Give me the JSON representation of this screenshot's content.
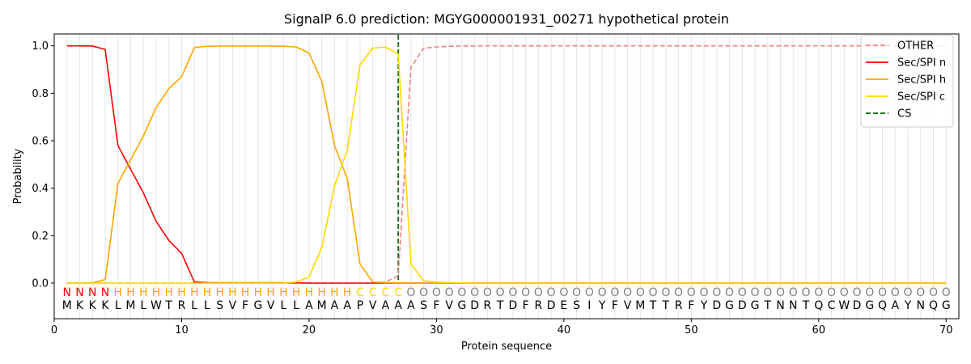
{
  "chart_data": {
    "type": "line",
    "title": "SignalP 6.0 prediction: MGYG000001931_00271 hypothetical protein",
    "xlabel": "Protein sequence",
    "ylabel": "Probability",
    "xlim": [
      0,
      71
    ],
    "ylim": [
      -0.15,
      1.05
    ],
    "x_ticks": [
      0,
      10,
      20,
      30,
      40,
      50,
      60,
      70
    ],
    "y_ticks": [
      0.0,
      0.2,
      0.4,
      0.6,
      0.8,
      1.0
    ],
    "y_tick_labels": [
      "0.0",
      "0.2",
      "0.4",
      "0.6",
      "0.8",
      "1.0"
    ],
    "grid": "vertical lines at each residue",
    "legend_position": "top-right",
    "sequence": [
      "M",
      "K",
      "K",
      "K",
      "L",
      "M",
      "L",
      "W",
      "T",
      "R",
      "L",
      "L",
      "S",
      "V",
      "F",
      "G",
      "V",
      "L",
      "L",
      "A",
      "M",
      "A",
      "A",
      "P",
      "V",
      "A",
      "A",
      "A",
      "S",
      "F",
      "V",
      "G",
      "D",
      "R",
      "T",
      "D",
      "F",
      "R",
      "D",
      "E",
      "S",
      "I",
      "Y",
      "F",
      "V",
      "M",
      "T",
      "T",
      "R",
      "F",
      "Y",
      "D",
      "G",
      "D",
      "G",
      "T",
      "N",
      "N",
      "T",
      "Q",
      "C",
      "W",
      "D",
      "G",
      "Q",
      "A",
      "Y",
      "N",
      "Q",
      "G"
    ],
    "annotation": [
      "N",
      "N",
      "N",
      "N",
      "H",
      "H",
      "H",
      "H",
      "H",
      "H",
      "H",
      "H",
      "H",
      "H",
      "H",
      "H",
      "H",
      "H",
      "H",
      "H",
      "H",
      "H",
      "H",
      "C",
      "C",
      "C",
      "C",
      "O",
      "O",
      "O",
      "O",
      "O",
      "O",
      "O",
      "O",
      "O",
      "O",
      "O",
      "O",
      "O",
      "O",
      "O",
      "O",
      "O",
      "O",
      "O",
      "O",
      "O",
      "O",
      "O",
      "O",
      "O",
      "O",
      "O",
      "O",
      "O",
      "O",
      "O",
      "O",
      "O",
      "O",
      "O",
      "O",
      "O",
      "O",
      "O",
      "O",
      "O",
      "O",
      "O"
    ],
    "annotation_colors": {
      "N": "#ff0000",
      "H": "#ffa500",
      "C": "#ffd700",
      "O": "#808080"
    },
    "cleavage_site": 27,
    "series": [
      {
        "name": "OTHER",
        "color": "#f08080",
        "style": "dashed",
        "values": [
          0.0,
          0.0,
          0.0,
          0.0,
          0.0,
          0.0,
          0.0,
          0.0,
          0.0,
          0.0,
          0.0,
          0.0,
          0.0,
          0.0,
          0.0,
          0.0,
          0.0,
          0.0,
          0.0,
          0.0,
          0.0,
          0.0,
          0.0,
          0.0,
          0.0,
          0.005,
          0.03,
          0.91,
          0.99,
          0.995,
          0.998,
          0.999,
          0.999,
          1.0,
          1.0,
          1.0,
          1.0,
          1.0,
          1.0,
          1.0,
          1.0,
          1.0,
          1.0,
          1.0,
          1.0,
          1.0,
          1.0,
          1.0,
          1.0,
          1.0,
          1.0,
          1.0,
          1.0,
          1.0,
          1.0,
          1.0,
          1.0,
          1.0,
          1.0,
          1.0,
          1.0,
          1.0,
          1.0,
          1.0,
          1.0,
          1.0,
          1.0,
          1.0,
          1.0,
          1.0
        ]
      },
      {
        "name": "Sec/SPI n",
        "color": "#ff0000",
        "style": "solid",
        "values": [
          1.0,
          1.0,
          0.999,
          0.985,
          0.58,
          0.48,
          0.38,
          0.26,
          0.18,
          0.125,
          0.005,
          0.002,
          0.001,
          0.001,
          0.001,
          0.001,
          0.001,
          0.001,
          0.001,
          0.0,
          0.0,
          0.0,
          0.0,
          0.0,
          0.0,
          0.0,
          0.0,
          0.0,
          0.0,
          0.0,
          0.0,
          0.0,
          0.0,
          0.0,
          0.0,
          0.0,
          0.0,
          0.0,
          0.0,
          0.0,
          0.0,
          0.0,
          0.0,
          0.0,
          0.0,
          0.0,
          0.0,
          0.0,
          0.0,
          0.0,
          0.0,
          0.0,
          0.0,
          0.0,
          0.0,
          0.0,
          0.0,
          0.0,
          0.0,
          0.0,
          0.0,
          0.0,
          0.0,
          0.0,
          0.0,
          0.0,
          0.0,
          0.0,
          0.0,
          0.0
        ]
      },
      {
        "name": "Sec/SPI h",
        "color": "#ffa500",
        "style": "solid",
        "values": [
          0.0,
          0.0,
          0.001,
          0.015,
          0.42,
          0.52,
          0.62,
          0.74,
          0.82,
          0.87,
          0.993,
          0.998,
          0.999,
          0.999,
          0.999,
          0.999,
          0.999,
          0.998,
          0.995,
          0.97,
          0.85,
          0.58,
          0.44,
          0.08,
          0.005,
          0.002,
          0.001,
          0.0,
          0.0,
          0.0,
          0.0,
          0.0,
          0.0,
          0.0,
          0.0,
          0.0,
          0.0,
          0.0,
          0.0,
          0.0,
          0.0,
          0.0,
          0.0,
          0.0,
          0.0,
          0.0,
          0.0,
          0.0,
          0.0,
          0.0,
          0.0,
          0.0,
          0.0,
          0.0,
          0.0,
          0.0,
          0.0,
          0.0,
          0.0,
          0.0,
          0.0,
          0.0,
          0.0,
          0.0,
          0.0,
          0.0,
          0.0,
          0.0,
          0.0,
          0.0
        ]
      },
      {
        "name": "Sec/SPI c",
        "color": "#ffd700",
        "style": "solid",
        "values": [
          0.0,
          0.0,
          0.0,
          0.0,
          0.0,
          0.0,
          0.0,
          0.0,
          0.0,
          0.0,
          0.0,
          0.0,
          0.0,
          0.0,
          0.0,
          0.0,
          0.0,
          0.0,
          0.005,
          0.025,
          0.15,
          0.41,
          0.56,
          0.92,
          0.99,
          0.995,
          0.965,
          0.08,
          0.01,
          0.004,
          0.002,
          0.001,
          0.0,
          0.0,
          0.0,
          0.0,
          0.0,
          0.0,
          0.0,
          0.0,
          0.0,
          0.0,
          0.0,
          0.0,
          0.0,
          0.0,
          0.0,
          0.0,
          0.0,
          0.0,
          0.0,
          0.0,
          0.0,
          0.0,
          0.0,
          0.0,
          0.0,
          0.0,
          0.0,
          0.0,
          0.0,
          0.0,
          0.0,
          0.0,
          0.0,
          0.0,
          0.0,
          0.0,
          0.0,
          0.0
        ]
      }
    ],
    "legend": [
      {
        "label": "OTHER",
        "color": "#f08080",
        "style": "dashed"
      },
      {
        "label": "Sec/SPI n",
        "color": "#ff0000",
        "style": "solid"
      },
      {
        "label": "Sec/SPI h",
        "color": "#ffa500",
        "style": "solid"
      },
      {
        "label": "Sec/SPI c",
        "color": "#ffd700",
        "style": "solid"
      },
      {
        "label": "CS",
        "color": "#006400",
        "style": "dashed"
      }
    ]
  }
}
